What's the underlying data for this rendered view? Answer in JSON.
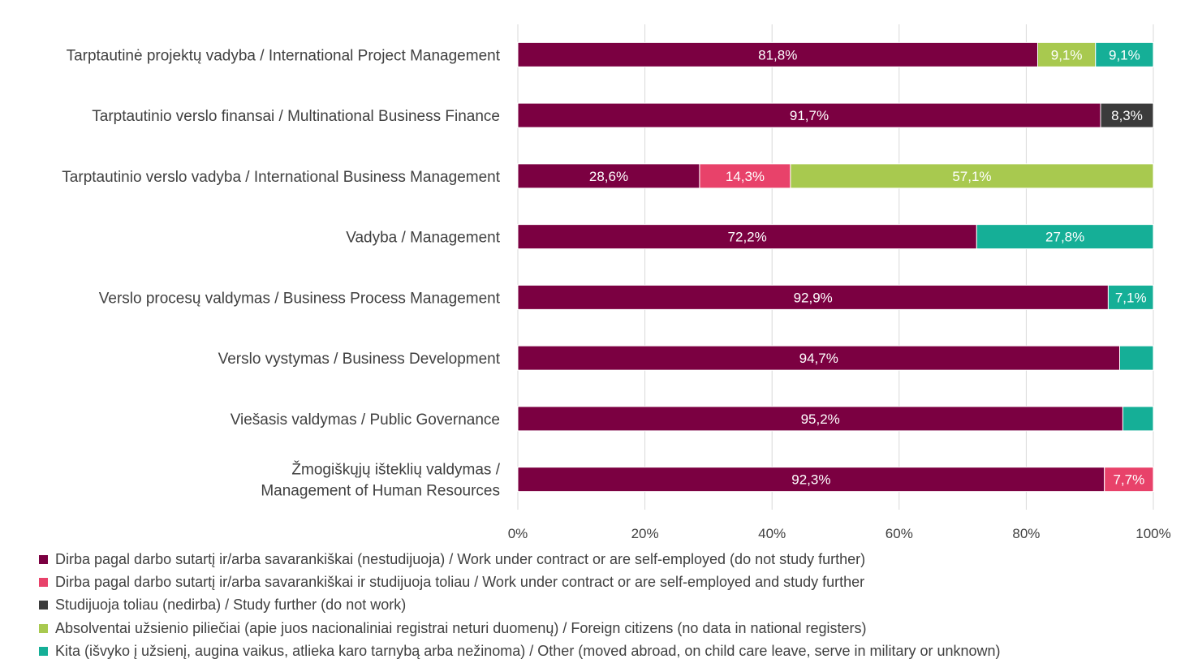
{
  "chart_data": {
    "type": "bar",
    "orientation": "horizontal",
    "stacked": "percent",
    "categories": [
      [
        "Tarptautinė projektų vadyba / International Project Management"
      ],
      [
        "Tarptautinio verslo finansai / Multinational Business Finance"
      ],
      [
        "Tarptautinio verslo vadyba / International Business Management"
      ],
      [
        "Vadyba / Management"
      ],
      [
        "Verslo procesų valdymas / Business Process Management"
      ],
      [
        "Verslo vystymas / Business Development"
      ],
      [
        "Viešasis valdymas / Public Governance"
      ],
      [
        "Žmogiškųjų išteklių valdymas /",
        "Management of Human Resources"
      ]
    ],
    "series": [
      {
        "name": "Dirba pagal darbo sutartį ir/arba savarankiškai (nestudijuoja) / Work under contract or are self-employed (do not study further)",
        "color": "#7b0041",
        "values": [
          81.8,
          91.7,
          28.6,
          72.2,
          92.9,
          94.7,
          95.2,
          92.3
        ],
        "labels": [
          "81,8%",
          "91,7%",
          "28,6%",
          "72,2%",
          "92,9%",
          "94,7%",
          "95,2%",
          "92,3%"
        ]
      },
      {
        "name": "Dirba pagal darbo sutartį ir/arba savarankiškai  ir studijuoja toliau / Work under contract or are self-employed and study further",
        "color": "#e8426a",
        "values": [
          0,
          0,
          14.3,
          0,
          0,
          0,
          0,
          7.7
        ],
        "labels": [
          "",
          "",
          "14,3%",
          "",
          "",
          "",
          "",
          "7,7%"
        ]
      },
      {
        "name": "Studijuoja toliau (nedirba) / Study further (do not work)",
        "color": "#3b3b3b",
        "values": [
          0,
          8.3,
          0,
          0,
          0,
          0,
          0,
          0
        ],
        "labels": [
          "",
          "8,3%",
          "",
          "",
          "",
          "",
          "",
          ""
        ]
      },
      {
        "name": "Absolventai užsienio piliečiai (apie juos nacionaliniai registrai neturi duomenų) / Foreign citizens (no data in national registers)",
        "color": "#a8c94f",
        "values": [
          9.1,
          0,
          57.1,
          0,
          0,
          0,
          0,
          0
        ],
        "labels": [
          "9,1%",
          "",
          "57,1%",
          "",
          "",
          "",
          "",
          ""
        ]
      },
      {
        "name": "Kita (išvyko į užsienį, augina vaikus, atlieka karo tarnybą arba nežinoma) / Other (moved abroad, on child care leave, serve in military or unknown)",
        "color": "#15af97",
        "values": [
          9.1,
          0,
          0,
          27.8,
          7.1,
          5.3,
          4.8,
          0
        ],
        "labels": [
          "9,1%",
          "",
          "",
          "27,8%",
          "7,1%",
          "",
          "",
          ""
        ]
      }
    ],
    "xlim": [
      0,
      100
    ],
    "xticks": [
      "0%",
      "20%",
      "40%",
      "60%",
      "80%",
      "100%"
    ],
    "grid": "vertical",
    "legend_position": "bottom"
  }
}
